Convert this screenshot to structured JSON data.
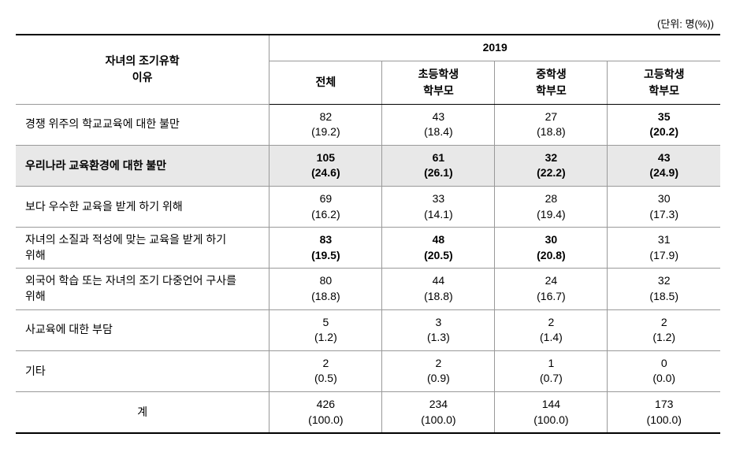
{
  "unit": "(단위: 명(%))",
  "year_header": "2019",
  "row_header_title_line1": "자녀의 조기유학",
  "row_header_title_line2": "이유",
  "columns": {
    "total": {
      "label": "전체"
    },
    "elementary": {
      "line1": "초등학생",
      "line2": "학부모"
    },
    "middle": {
      "line1": "중학생",
      "line2": "학부모"
    },
    "high": {
      "line1": "고등학생",
      "line2": "학부모"
    }
  },
  "rows": [
    {
      "label": "경쟁 위주의 학교교육에 대한 불만",
      "two_line": false,
      "highlighted": false,
      "cells": [
        {
          "val": "82",
          "pct": "(19.2)",
          "bold": false
        },
        {
          "val": "43",
          "pct": "(18.4)",
          "bold": false
        },
        {
          "val": "27",
          "pct": "(18.8)",
          "bold": false
        },
        {
          "val": "35",
          "pct": "(20.2)",
          "bold": true
        }
      ]
    },
    {
      "label": "우리나라 교육환경에 대한 불만",
      "two_line": false,
      "highlighted": true,
      "cells": [
        {
          "val": "105",
          "pct": "(24.6)",
          "bold": true
        },
        {
          "val": "61",
          "pct": "(26.1)",
          "bold": true
        },
        {
          "val": "32",
          "pct": "(22.2)",
          "bold": true
        },
        {
          "val": "43",
          "pct": "(24.9)",
          "bold": true
        }
      ]
    },
    {
      "label": "보다 우수한 교육을 받게 하기 위해",
      "two_line": false,
      "highlighted": false,
      "cells": [
        {
          "val": "69",
          "pct": "(16.2)",
          "bold": false
        },
        {
          "val": "33",
          "pct": "(14.1)",
          "bold": false
        },
        {
          "val": "28",
          "pct": "(19.4)",
          "bold": false
        },
        {
          "val": "30",
          "pct": "(17.3)",
          "bold": false
        }
      ]
    },
    {
      "label_line1": "자녀의 소질과 적성에 맞는 교육을 받게 하기",
      "label_line2": "위해",
      "two_line": true,
      "highlighted": false,
      "cells": [
        {
          "val": "83",
          "pct": "(19.5)",
          "bold": true
        },
        {
          "val": "48",
          "pct": "(20.5)",
          "bold": true
        },
        {
          "val": "30",
          "pct": "(20.8)",
          "bold": true
        },
        {
          "val": "31",
          "pct": "(17.9)",
          "bold": false
        }
      ]
    },
    {
      "label_line1": "외국어 학습 또는 자녀의 조기 다중언어 구사를",
      "label_line2": "위해",
      "two_line": true,
      "highlighted": false,
      "cells": [
        {
          "val": "80",
          "pct": "(18.8)",
          "bold": false
        },
        {
          "val": "44",
          "pct": "(18.8)",
          "bold": false
        },
        {
          "val": "24",
          "pct": "(16.7)",
          "bold": false
        },
        {
          "val": "32",
          "pct": "(18.5)",
          "bold": false
        }
      ]
    },
    {
      "label": "사교육에 대한 부담",
      "two_line": false,
      "highlighted": false,
      "cells": [
        {
          "val": "5",
          "pct": "(1.2)",
          "bold": false
        },
        {
          "val": "3",
          "pct": "(1.3)",
          "bold": false
        },
        {
          "val": "2",
          "pct": "(1.4)",
          "bold": false
        },
        {
          "val": "2",
          "pct": "(1.2)",
          "bold": false
        }
      ]
    },
    {
      "label": "기타",
      "two_line": false,
      "highlighted": false,
      "cells": [
        {
          "val": "2",
          "pct": "(0.5)",
          "bold": false
        },
        {
          "val": "2",
          "pct": "(0.9)",
          "bold": false
        },
        {
          "val": "1",
          "pct": "(0.7)",
          "bold": false
        },
        {
          "val": "0",
          "pct": "(0.0)",
          "bold": false
        }
      ]
    }
  ],
  "total_row": {
    "label": "계",
    "cells": [
      {
        "val": "426",
        "pct": "(100.0)"
      },
      {
        "val": "234",
        "pct": "(100.0)"
      },
      {
        "val": "144",
        "pct": "(100.0)"
      },
      {
        "val": "173",
        "pct": "(100.0)"
      }
    ]
  },
  "styling": {
    "background_color": "#ffffff",
    "text_color": "#000000",
    "highlight_bg": "#e8e8e8",
    "border_main": "#000000",
    "border_light": "#999999",
    "font_size_body": 14,
    "font_size_unit": 13,
    "font_family": "Malgun Gothic"
  }
}
